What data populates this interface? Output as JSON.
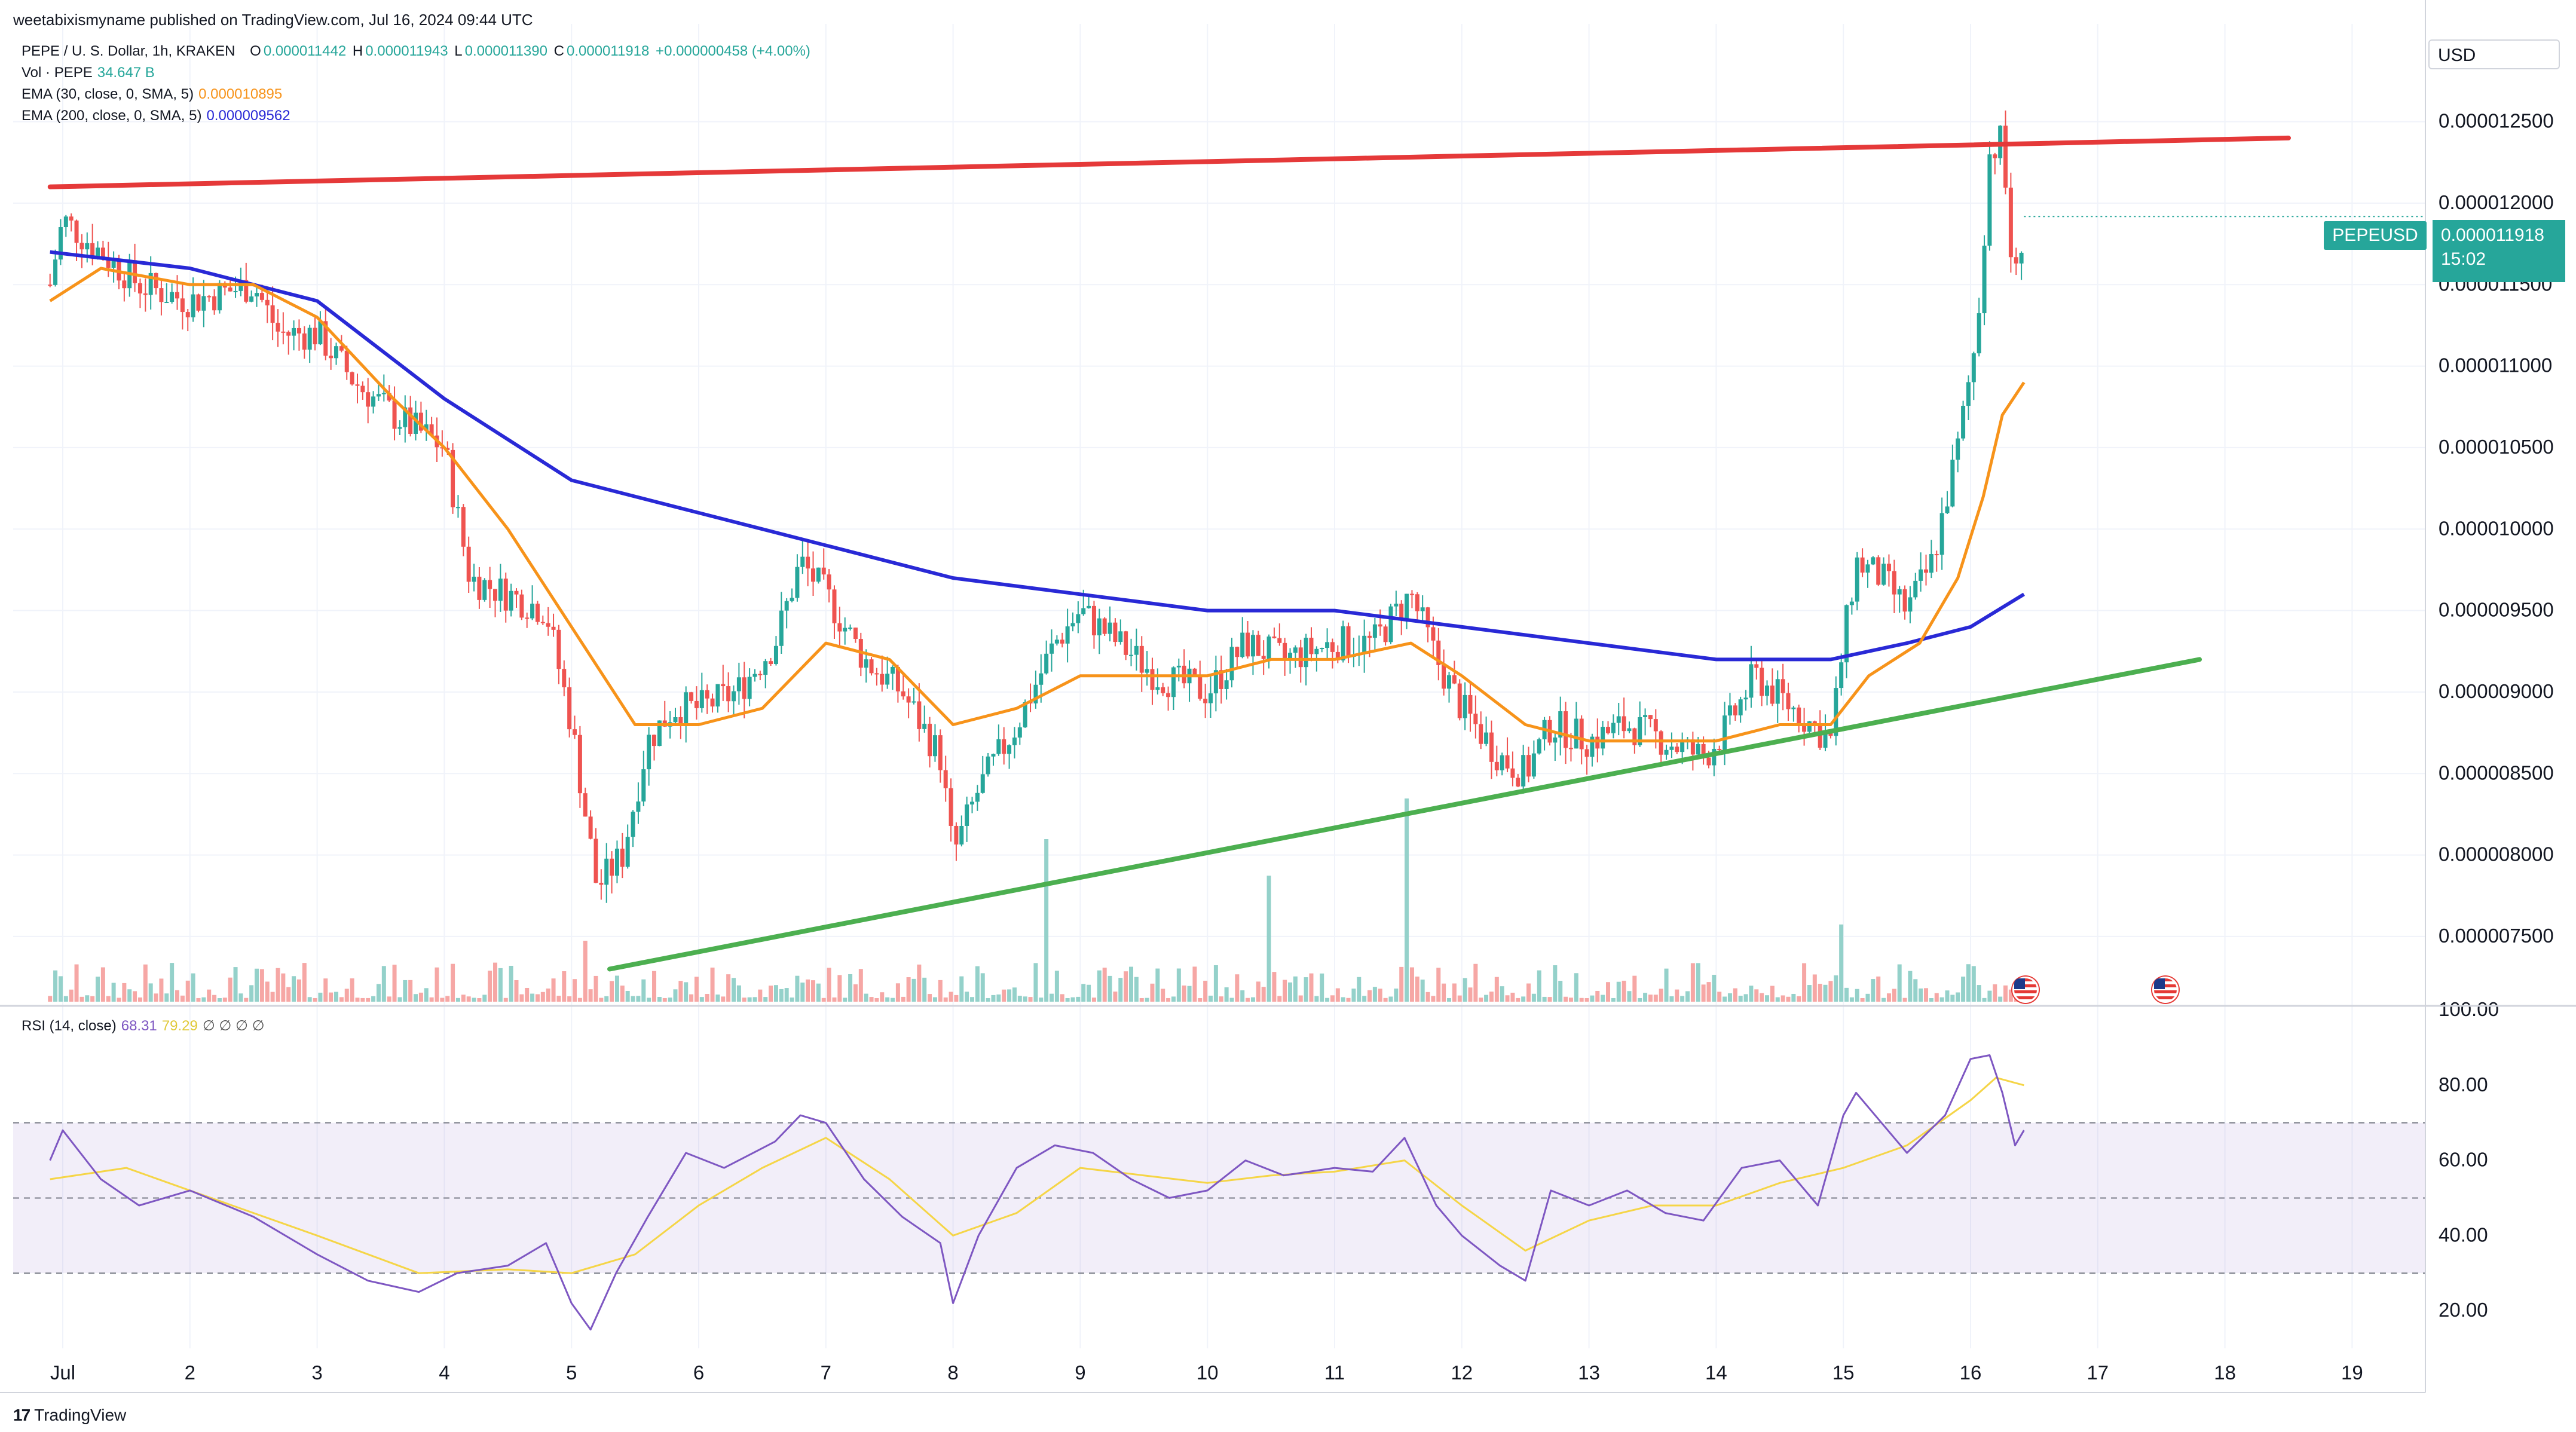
{
  "header": {
    "published": "weetabixismyname published on TradingView.com, Jul 16, 2024 09:44 UTC"
  },
  "legend": {
    "pair": "PEPE / U. S. Dollar, 1h, KRAKEN",
    "open_label": "O",
    "open": "0.000011442",
    "high_label": "H",
    "high": "0.000011943",
    "low_label": "L",
    "low": "0.000011390",
    "close_label": "C",
    "close": "0.000011918",
    "change": "+0.000000458 (+4.00%)",
    "volume_label": "Vol · PEPE",
    "volume": "34.647 B",
    "ema30_label": "EMA (30, close, 0, SMA, 5)",
    "ema30": "0.000010895",
    "ema200_label": "EMA (200, close, 0, SMA, 5)",
    "ema200": "0.000009562",
    "rsi_label": "RSI (14, close)",
    "rsi": "68.31",
    "rsi_ma": "79.29",
    "rsi_extra": "∅ ∅ ∅ ∅"
  },
  "currency": "USD",
  "symbol_tag": "PEPEUSD",
  "last_price": "0.000011918",
  "countdown": "15:02",
  "footer_logo": "TradingView",
  "colors": {
    "up": "#26a69a",
    "down": "#ef5350",
    "ema30": "#f7931a",
    "ema200": "#2929d6",
    "resistance": "#e53939",
    "support": "#4caf50",
    "rsi": "#7e57c2",
    "rsi_ma": "#f5d547"
  },
  "chart_data": [
    {
      "type": "candlestick",
      "title": "PEPE / U. S. Dollar, 1h, KRAKEN",
      "x_labels": [
        "Jul",
        "2",
        "3",
        "4",
        "5",
        "6",
        "7",
        "8",
        "9",
        "10",
        "11",
        "12",
        "13",
        "14",
        "15",
        "16",
        "17",
        "18",
        "19"
      ],
      "ylim": [
        7.1e-06,
        1.31e-05
      ],
      "y_ticks": [
        "0.000012500",
        "0.000012000",
        "0.000011500",
        "0.000011000",
        "0.000010500",
        "0.000010000",
        "0.000009500",
        "0.000009000",
        "0.000008500",
        "0.000008000",
        "0.000007500"
      ],
      "price_path": [
        [
          0.9,
          1.15e-05
        ],
        [
          1.0,
          1.19e-05
        ],
        [
          1.3,
          1.17e-05
        ],
        [
          1.6,
          1.15e-05
        ],
        [
          2.0,
          1.14e-05
        ],
        [
          2.5,
          1.15e-05
        ],
        [
          2.7,
          1.12e-05
        ],
        [
          3.0,
          1.12e-05
        ],
        [
          3.3,
          1.09e-05
        ],
        [
          3.6,
          1.07e-05
        ],
        [
          4.0,
          1.05e-05
        ],
        [
          4.2,
          9.7e-06
        ],
        [
          4.5,
          9.6e-06
        ],
        [
          4.8,
          9.5e-06
        ],
        [
          5.0,
          8.8e-06
        ],
        [
          5.2,
          7.8e-06
        ],
        [
          5.4,
          8e-06
        ],
        [
          5.6,
          8.7e-06
        ],
        [
          5.8,
          8.9e-06
        ],
        [
          6.0,
          8.9e-06
        ],
        [
          6.3,
          9e-06
        ],
        [
          6.6,
          9.3e-06
        ],
        [
          6.8,
          9.8e-06
        ],
        [
          7.0,
          9.6e-06
        ],
        [
          7.3,
          9.2e-06
        ],
        [
          7.6,
          9e-06
        ],
        [
          7.9,
          8.6e-06
        ],
        [
          8.0,
          8e-06
        ],
        [
          8.2,
          8.4e-06
        ],
        [
          8.5,
          8.8e-06
        ],
        [
          8.8,
          9.3e-06
        ],
        [
          9.0,
          9.5e-06
        ],
        [
          9.3,
          9.3e-06
        ],
        [
          9.6,
          9.1e-06
        ],
        [
          10.0,
          9e-06
        ],
        [
          10.3,
          9.3e-06
        ],
        [
          10.6,
          9.2e-06
        ],
        [
          11.0,
          9.3e-06
        ],
        [
          11.3,
          9.3e-06
        ],
        [
          11.6,
          9.6e-06
        ],
        [
          11.8,
          9.2e-06
        ],
        [
          12.0,
          8.9e-06
        ],
        [
          12.3,
          8.6e-06
        ],
        [
          12.5,
          8.5e-06
        ],
        [
          12.7,
          8.8e-06
        ],
        [
          13.0,
          8.7e-06
        ],
        [
          13.3,
          8.8e-06
        ],
        [
          13.6,
          8.7e-06
        ],
        [
          13.9,
          8.6e-06
        ],
        [
          14.1,
          8.8e-06
        ],
        [
          14.3,
          9.1e-06
        ],
        [
          14.6,
          8.9e-06
        ],
        [
          14.9,
          8.7e-06
        ],
        [
          15.0,
          9.3e-06
        ],
        [
          15.1,
          9.8e-06
        ],
        [
          15.3,
          9.7e-06
        ],
        [
          15.5,
          9.5e-06
        ],
        [
          15.7,
          9.8e-06
        ],
        [
          15.9,
          1.05e-05
        ],
        [
          16.05,
          1.12e-05
        ],
        [
          16.15,
          1.23e-05
        ],
        [
          16.25,
          1.24e-05
        ],
        [
          16.3,
          1.18e-05
        ],
        [
          16.35,
          1.15e-05
        ],
        [
          16.42,
          1.19e-05
        ]
      ],
      "ema30": [
        [
          0.9,
          1.14e-05
        ],
        [
          1.3,
          1.16e-05
        ],
        [
          2.0,
          1.15e-05
        ],
        [
          2.5,
          1.15e-05
        ],
        [
          3.0,
          1.13e-05
        ],
        [
          3.6,
          1.08e-05
        ],
        [
          4.0,
          1.05e-05
        ],
        [
          4.5,
          1e-05
        ],
        [
          5.0,
          9.4e-06
        ],
        [
          5.5,
          8.8e-06
        ],
        [
          6.0,
          8.8e-06
        ],
        [
          6.5,
          8.9e-06
        ],
        [
          7.0,
          9.3e-06
        ],
        [
          7.5,
          9.2e-06
        ],
        [
          8.0,
          8.8e-06
        ],
        [
          8.5,
          8.9e-06
        ],
        [
          9.0,
          9.1e-06
        ],
        [
          9.5,
          9.1e-06
        ],
        [
          10.0,
          9.1e-06
        ],
        [
          10.5,
          9.2e-06
        ],
        [
          11.0,
          9.2e-06
        ],
        [
          11.6,
          9.3e-06
        ],
        [
          12.0,
          9.1e-06
        ],
        [
          12.5,
          8.8e-06
        ],
        [
          13.0,
          8.7e-06
        ],
        [
          13.5,
          8.7e-06
        ],
        [
          14.0,
          8.7e-06
        ],
        [
          14.5,
          8.8e-06
        ],
        [
          14.9,
          8.8e-06
        ],
        [
          15.2,
          9.1e-06
        ],
        [
          15.6,
          9.3e-06
        ],
        [
          15.9,
          9.7e-06
        ],
        [
          16.1,
          1.02e-05
        ],
        [
          16.25,
          1.07e-05
        ],
        [
          16.42,
          1.09e-05
        ]
      ],
      "ema200": [
        [
          0.9,
          1.17e-05
        ],
        [
          2.0,
          1.16e-05
        ],
        [
          3.0,
          1.14e-05
        ],
        [
          4.0,
          1.08e-05
        ],
        [
          5.0,
          1.03e-05
        ],
        [
          6.0,
          1.01e-05
        ],
        [
          7.0,
          9.9e-06
        ],
        [
          8.0,
          9.7e-06
        ],
        [
          9.0,
          9.6e-06
        ],
        [
          10.0,
          9.5e-06
        ],
        [
          11.0,
          9.5e-06
        ],
        [
          12.0,
          9.4e-06
        ],
        [
          13.0,
          9.3e-06
        ],
        [
          14.0,
          9.2e-06
        ],
        [
          14.9,
          9.2e-06
        ],
        [
          15.5,
          9.3e-06
        ],
        [
          16.0,
          9.4e-06
        ],
        [
          16.42,
          9.6e-06
        ]
      ],
      "trendlines": [
        {
          "name": "resistance",
          "from": [
            0.9,
            1.21e-05
          ],
          "to": [
            18.5,
            1.24e-05
          ]
        },
        {
          "name": "support",
          "from": [
            5.3,
            7.3e-06
          ],
          "to": [
            17.8,
            9.2e-06
          ]
        }
      ],
      "volume_spikes": [
        [
          8.75,
          0.8
        ],
        [
          11.55,
          1.0
        ],
        [
          10.5,
          0.62
        ],
        [
          15.0,
          0.38
        ],
        [
          5.1,
          0.3
        ]
      ]
    },
    {
      "type": "line",
      "title": "RSI (14, close)",
      "ylim": [
        10,
        100
      ],
      "y_ticks": [
        "100.00",
        "80.00",
        "60.00",
        "40.00",
        "20.00"
      ],
      "bands": [
        70,
        50,
        30
      ],
      "rsi": [
        [
          0.9,
          60
        ],
        [
          1.0,
          68
        ],
        [
          1.3,
          55
        ],
        [
          1.6,
          48
        ],
        [
          2.0,
          52
        ],
        [
          2.5,
          45
        ],
        [
          3.0,
          35
        ],
        [
          3.4,
          28
        ],
        [
          3.8,
          25
        ],
        [
          4.1,
          30
        ],
        [
          4.5,
          32
        ],
        [
          4.8,
          38
        ],
        [
          5.0,
          22
        ],
        [
          5.15,
          15
        ],
        [
          5.35,
          30
        ],
        [
          5.6,
          45
        ],
        [
          5.9,
          62
        ],
        [
          6.2,
          58
        ],
        [
          6.6,
          65
        ],
        [
          6.8,
          72
        ],
        [
          7.0,
          70
        ],
        [
          7.3,
          55
        ],
        [
          7.6,
          45
        ],
        [
          7.9,
          38
        ],
        [
          8.0,
          22
        ],
        [
          8.2,
          40
        ],
        [
          8.5,
          58
        ],
        [
          8.8,
          64
        ],
        [
          9.1,
          62
        ],
        [
          9.4,
          55
        ],
        [
          9.7,
          50
        ],
        [
          10.0,
          52
        ],
        [
          10.3,
          60
        ],
        [
          10.6,
          56
        ],
        [
          11.0,
          58
        ],
        [
          11.3,
          57
        ],
        [
          11.55,
          66
        ],
        [
          11.8,
          48
        ],
        [
          12.0,
          40
        ],
        [
          12.3,
          32
        ],
        [
          12.5,
          28
        ],
        [
          12.7,
          52
        ],
        [
          13.0,
          48
        ],
        [
          13.3,
          52
        ],
        [
          13.6,
          46
        ],
        [
          13.9,
          44
        ],
        [
          14.2,
          58
        ],
        [
          14.5,
          60
        ],
        [
          14.8,
          48
        ],
        [
          15.0,
          72
        ],
        [
          15.1,
          78
        ],
        [
          15.3,
          70
        ],
        [
          15.5,
          62
        ],
        [
          15.8,
          72
        ],
        [
          16.0,
          87
        ],
        [
          16.15,
          88
        ],
        [
          16.25,
          78
        ],
        [
          16.35,
          64
        ],
        [
          16.42,
          68
        ]
      ],
      "rsi_ma": [
        [
          0.9,
          55
        ],
        [
          1.5,
          58
        ],
        [
          2.0,
          52
        ],
        [
          3.0,
          40
        ],
        [
          3.8,
          30
        ],
        [
          4.5,
          31
        ],
        [
          5.0,
          30
        ],
        [
          5.5,
          35
        ],
        [
          6.0,
          48
        ],
        [
          6.5,
          58
        ],
        [
          7.0,
          66
        ],
        [
          7.5,
          55
        ],
        [
          8.0,
          40
        ],
        [
          8.5,
          46
        ],
        [
          9.0,
          58
        ],
        [
          9.5,
          56
        ],
        [
          10.0,
          54
        ],
        [
          10.5,
          56
        ],
        [
          11.0,
          57
        ],
        [
          11.55,
          60
        ],
        [
          12.0,
          48
        ],
        [
          12.5,
          36
        ],
        [
          13.0,
          44
        ],
        [
          13.5,
          48
        ],
        [
          14.0,
          48
        ],
        [
          14.5,
          54
        ],
        [
          15.0,
          58
        ],
        [
          15.5,
          64
        ],
        [
          16.0,
          76
        ],
        [
          16.2,
          82
        ],
        [
          16.42,
          80
        ]
      ]
    }
  ]
}
